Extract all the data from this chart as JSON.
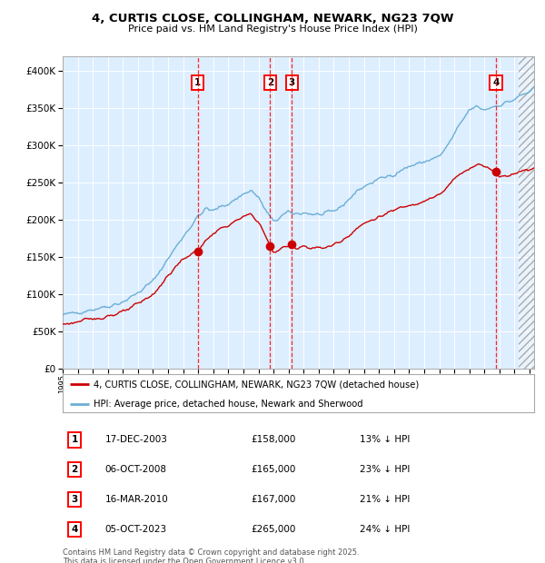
{
  "title1": "4, CURTIS CLOSE, COLLINGHAM, NEWARK, NG23 7QW",
  "title2": "Price paid vs. HM Land Registry's House Price Index (HPI)",
  "hpi_label": "HPI: Average price, detached house, Newark and Sherwood",
  "property_label": "4, CURTIS CLOSE, COLLINGHAM, NEWARK, NG23 7QW (detached house)",
  "footer": "Contains HM Land Registry data © Crown copyright and database right 2025.\nThis data is licensed under the Open Government Licence v3.0.",
  "transactions": [
    {
      "num": 1,
      "date": "17-DEC-2003",
      "price": 158000,
      "pct": "13% ↓ HPI",
      "year": 2003.96
    },
    {
      "num": 2,
      "date": "06-OCT-2008",
      "price": 165000,
      "pct": "23% ↓ HPI",
      "year": 2008.77
    },
    {
      "num": 3,
      "date": "16-MAR-2010",
      "price": 167000,
      "pct": "21% ↓ HPI",
      "year": 2010.21
    },
    {
      "num": 4,
      "date": "05-OCT-2023",
      "price": 265000,
      "pct": "24% ↓ HPI",
      "year": 2023.77
    }
  ],
  "hpi_color": "#6baed6",
  "property_color": "#cc0000",
  "fig_bg_color": "#ffffff",
  "plot_bg_color": "#ddeeff",
  "ylim": [
    0,
    420000
  ],
  "xlim_start": 1995.0,
  "xlim_end": 2026.3,
  "grid_color": "#ffffff",
  "yticks": [
    0,
    50000,
    100000,
    150000,
    200000,
    250000,
    300000,
    350000,
    400000
  ],
  "xtick_start": 1995,
  "xtick_end": 2027
}
